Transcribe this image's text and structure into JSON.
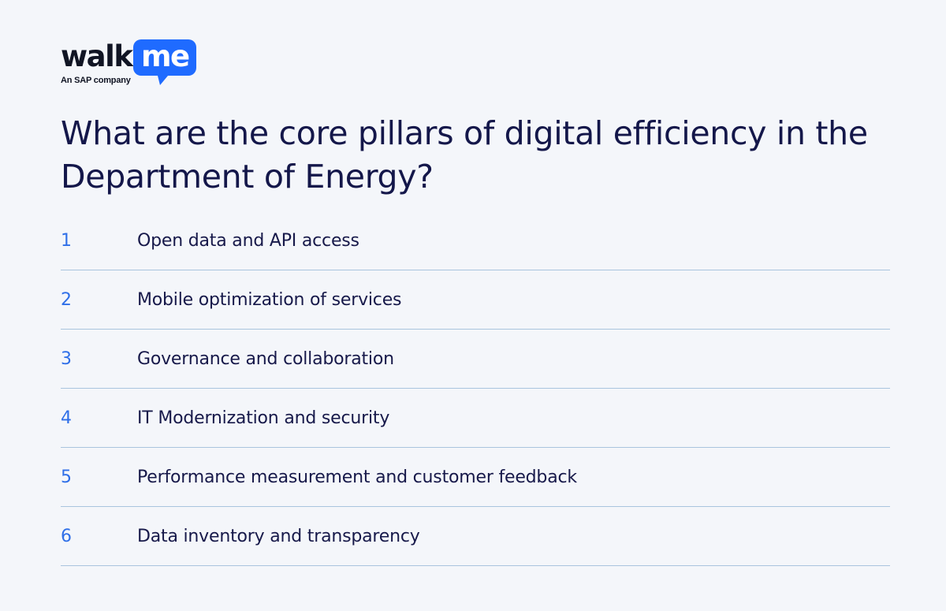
{
  "logo": {
    "word_dark": "walk",
    "word_light": "me",
    "tagline": "An SAP company",
    "bubble_color": "#1f6bff"
  },
  "headline": "What are the core pillars of digital efficiency in the Department of Energy?",
  "pillars": [
    {
      "number": "1",
      "label": "Open data and API access"
    },
    {
      "number": "2",
      "label": "Mobile optimization of services"
    },
    {
      "number": "3",
      "label": "Governance and collaboration"
    },
    {
      "number": "4",
      "label": "IT Modernization and security"
    },
    {
      "number": "5",
      "label": "Performance measurement and customer feedback"
    },
    {
      "number": "6",
      "label": "Data inventory and transparency"
    }
  ],
  "colors": {
    "background": "#f4f6fa",
    "accent": "#2f6fe8",
    "divider": "#a9c4de",
    "text": "#17194a"
  }
}
